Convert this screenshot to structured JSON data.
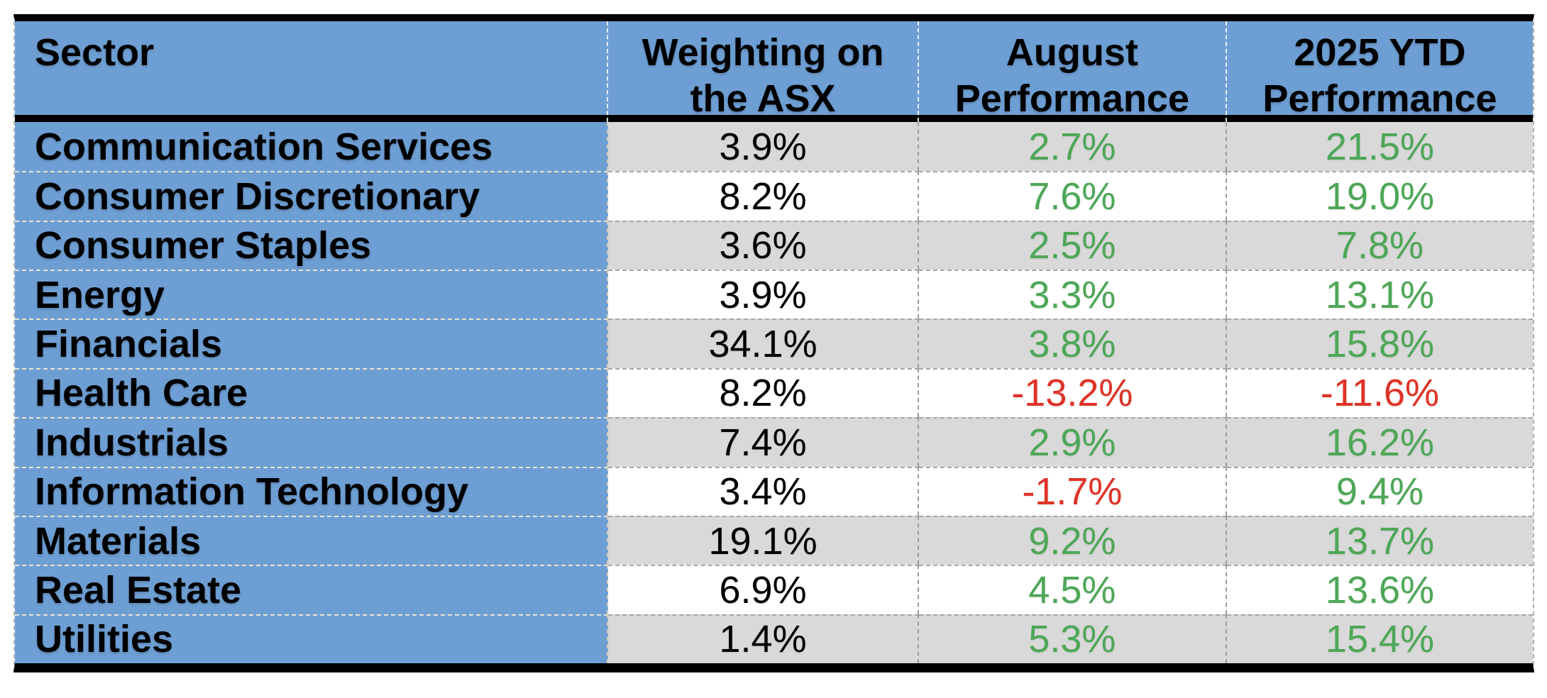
{
  "chart_data": {
    "type": "table",
    "columns": [
      "Sector",
      "Weighting on the ASX",
      "August Performance",
      "2025 YTD Performance"
    ],
    "rows": [
      [
        "Communication Services",
        "3.9%",
        "2.7%",
        "21.5%"
      ],
      [
        "Consumer Discretionary",
        "8.2%",
        "7.6%",
        "19.0%"
      ],
      [
        "Consumer Staples",
        "3.6%",
        "2.5%",
        "7.8%"
      ],
      [
        "Energy",
        "3.9%",
        "3.3%",
        "13.1%"
      ],
      [
        "Financials",
        "34.1%",
        "3.8%",
        "15.8%"
      ],
      [
        "Health Care",
        "8.2%",
        "-13.2%",
        "-11.6%"
      ],
      [
        "Industrials",
        "7.4%",
        "2.9%",
        "16.2%"
      ],
      [
        "Information Technology",
        "3.4%",
        "-1.7%",
        "9.4%"
      ],
      [
        "Materials",
        "19.1%",
        "9.2%",
        "13.7%"
      ],
      [
        "Real Estate",
        "6.9%",
        "4.5%",
        "13.6%"
      ],
      [
        "Utilities",
        "1.4%",
        "5.3%",
        "15.4%"
      ]
    ]
  },
  "colors": {
    "header_bg": "#6E9FD4",
    "sector_column_bg": "#6E9FD4",
    "band_gray": "#D9D9D9",
    "band_white": "#FFFFFF",
    "positive_green": "#4DA757",
    "negative_red": "#E03227",
    "border_black": "#000000"
  }
}
